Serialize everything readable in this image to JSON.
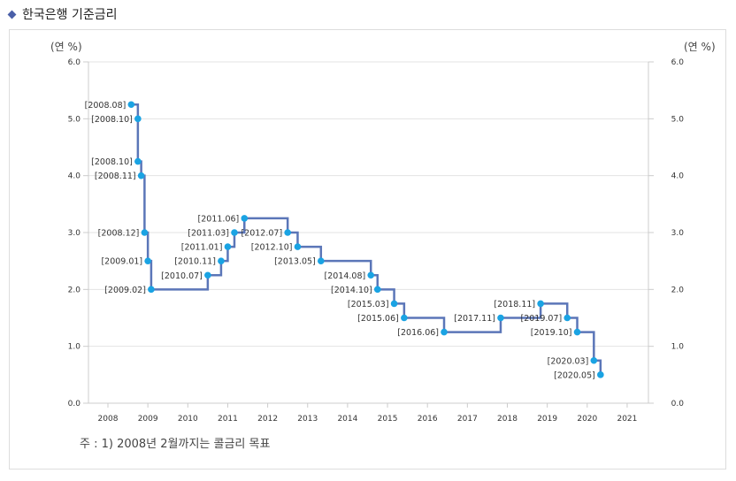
{
  "header": {
    "title": "한국은행 기준금리",
    "icon": "diamond-icon"
  },
  "chart_data": {
    "type": "line",
    "step": true,
    "title": "",
    "ylabel_left": "(연 %)",
    "ylabel_right": "(연 %)",
    "ylim": [
      0,
      6
    ],
    "yticks": [
      "0.0",
      "1.0",
      "2.0",
      "3.0",
      "4.0",
      "5.0",
      "6.0"
    ],
    "xlim": [
      2007.5,
      2021.5
    ],
    "xticks": [
      "2008",
      "2009",
      "2010",
      "2011",
      "2012",
      "2013",
      "2014",
      "2015",
      "2016",
      "2017",
      "2018",
      "2019",
      "2020",
      "2021"
    ],
    "grid": true,
    "colors": {
      "line": "#5b76b8",
      "point": "#1aa3e3"
    },
    "points": [
      {
        "label": "[2008.08]",
        "date": "2008.08",
        "value": 5.25
      },
      {
        "label": "[2008.10]",
        "date": "2008.10",
        "value": 5.0
      },
      {
        "label": "[2008.10]",
        "date": "2008.10",
        "value": 4.25
      },
      {
        "label": "[2008.11]",
        "date": "2008.11",
        "value": 4.0
      },
      {
        "label": "[2008.12]",
        "date": "2008.12",
        "value": 3.0
      },
      {
        "label": "[2009.01]",
        "date": "2009.01",
        "value": 2.5
      },
      {
        "label": "[2009.02]",
        "date": "2009.02",
        "value": 2.0
      },
      {
        "label": "[2010.07]",
        "date": "2010.07",
        "value": 2.25
      },
      {
        "label": "[2010.11]",
        "date": "2010.11",
        "value": 2.5
      },
      {
        "label": "[2011.01]",
        "date": "2011.01",
        "value": 2.75
      },
      {
        "label": "[2011.03]",
        "date": "2011.03",
        "value": 3.0
      },
      {
        "label": "[2011.06]",
        "date": "2011.06",
        "value": 3.25
      },
      {
        "label": "[2012.07]",
        "date": "2012.07",
        "value": 3.0
      },
      {
        "label": "[2012.10]",
        "date": "2012.10",
        "value": 2.75
      },
      {
        "label": "[2013.05]",
        "date": "2013.05",
        "value": 2.5
      },
      {
        "label": "[2014.08]",
        "date": "2014.08",
        "value": 2.25
      },
      {
        "label": "[2014.10]",
        "date": "2014.10",
        "value": 2.0
      },
      {
        "label": "[2015.03]",
        "date": "2015.03",
        "value": 1.75
      },
      {
        "label": "[2015.06]",
        "date": "2015.06",
        "value": 1.5
      },
      {
        "label": "[2016.06]",
        "date": "2016.06",
        "value": 1.25
      },
      {
        "label": "[2017.11]",
        "date": "2017.11",
        "value": 1.5
      },
      {
        "label": "[2018.11]",
        "date": "2018.11",
        "value": 1.75
      },
      {
        "label": "[2019.07]",
        "date": "2019.07",
        "value": 1.5
      },
      {
        "label": "[2019.10]",
        "date": "2019.10",
        "value": 1.25
      },
      {
        "label": "[2020.03]",
        "date": "2020.03",
        "value": 0.75
      },
      {
        "label": "[2020.05]",
        "date": "2020.05",
        "value": 0.5
      }
    ]
  },
  "footnote": "주 : 1) 2008년 2월까지는 콜금리 목표"
}
